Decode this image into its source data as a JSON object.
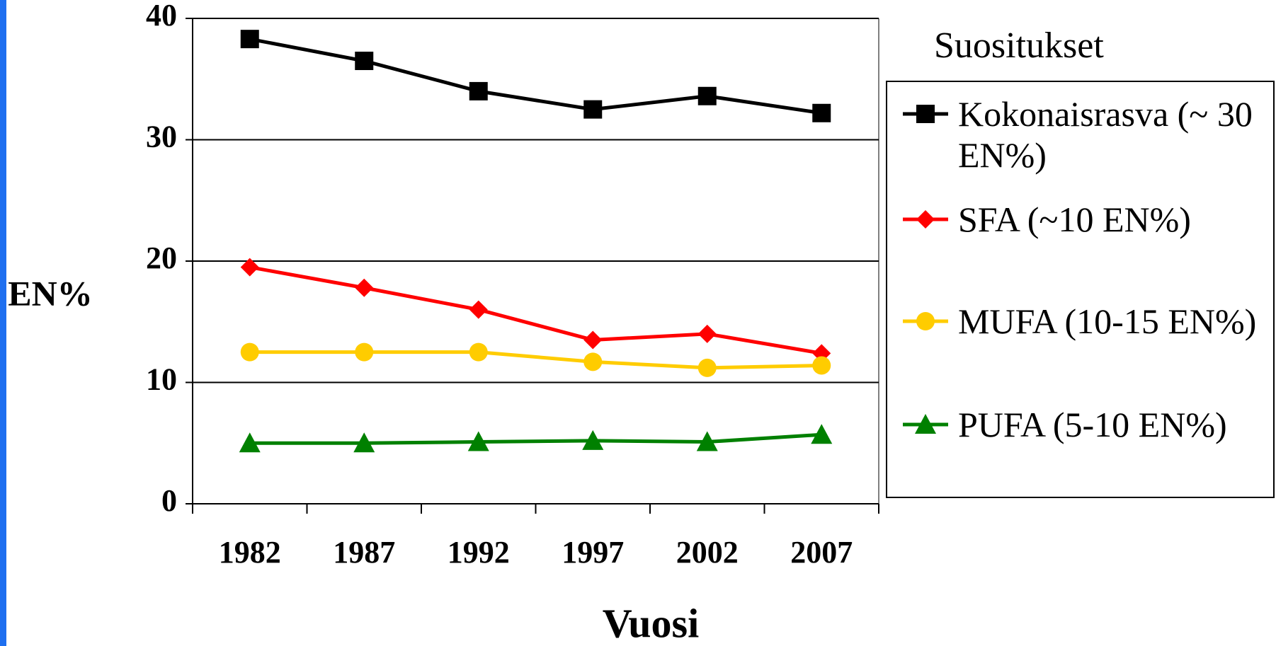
{
  "chart_data": {
    "type": "line",
    "categories": [
      "1982",
      "1987",
      "1992",
      "1997",
      "2002",
      "2007"
    ],
    "y_label": "EN%",
    "x_label": "Vuosi",
    "legend_title": "Suositukset",
    "ylim": [
      0,
      40
    ],
    "yticks": [
      0,
      10,
      20,
      30,
      40
    ],
    "grid": true,
    "legend": "right",
    "series": [
      {
        "name": "Kokonaisrasva (~ 30 EN%)",
        "color": "#000000",
        "marker": "square",
        "values": [
          38.3,
          36.5,
          34,
          32.5,
          33.6,
          32.2
        ]
      },
      {
        "name": "SFA (~10 EN%)",
        "color": "#ff0000",
        "marker": "diamond",
        "values": [
          19.5,
          17.8,
          16,
          13.5,
          14,
          12.4
        ]
      },
      {
        "name": "MUFA (10-15 EN%)",
        "color": "#ffcc00",
        "marker": "circle",
        "values": [
          12.5,
          12.5,
          12.5,
          11.7,
          11.2,
          11.4
        ]
      },
      {
        "name": "PUFA (5-10 EN%)",
        "color": "#008000",
        "marker": "triangle",
        "values": [
          5,
          5,
          5.1,
          5.2,
          5.1,
          5.7
        ]
      }
    ]
  }
}
